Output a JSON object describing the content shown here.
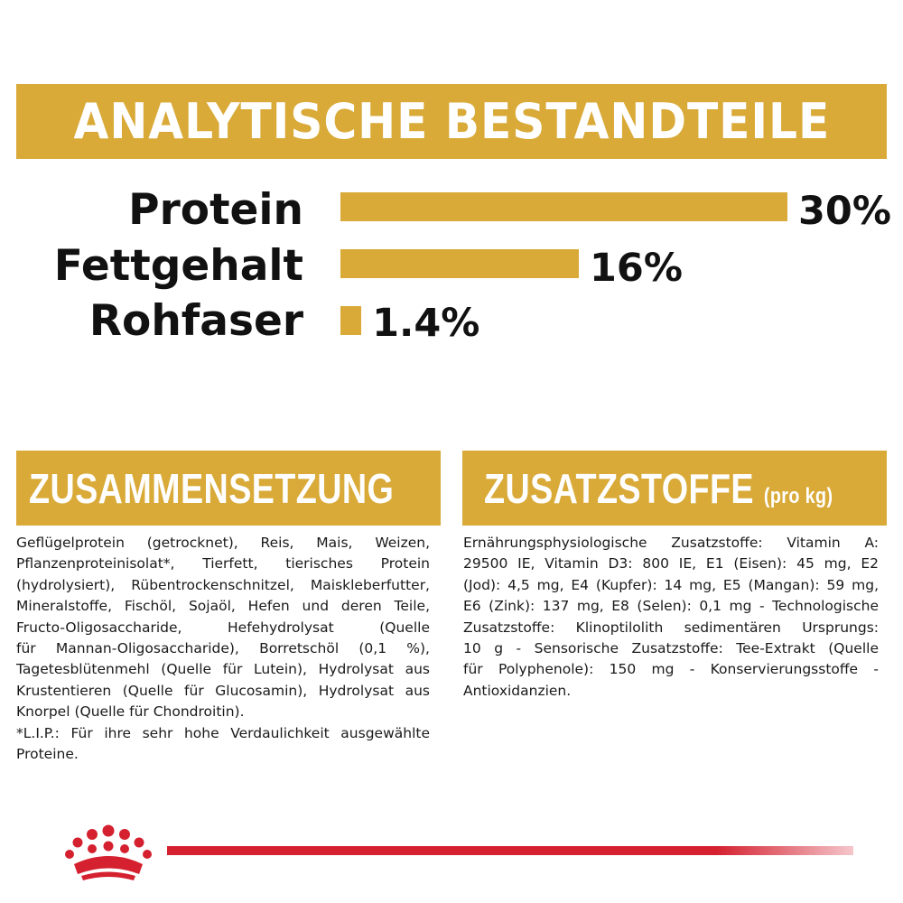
{
  "header": {
    "title": "ANALYTISCHE BESTANDTEILE"
  },
  "chart_data": {
    "type": "bar",
    "orientation": "horizontal",
    "title": "ANALYTISCHE BESTANDTEILE",
    "categories": [
      "Protein",
      "Fettgehalt",
      "Rohfaser"
    ],
    "values": [
      30,
      16,
      1.4
    ],
    "value_labels": [
      "30%",
      "16%",
      "1.4%"
    ],
    "unit": "%",
    "xlim": [
      0,
      30
    ],
    "grid": false,
    "bar_color": "#d9aa38"
  },
  "composition": {
    "title": "ZUSAMMENSETZUNG",
    "lines": [
      "Geflügelprotein (getrocknet), Reis, Mais, Weizen,",
      "Pflanzenproteinisolat*, Tierfett, tierisches Protein",
      "(hydrolysiert), Rübentrockenschnitzel, Maiskleberfutter,",
      "Mineralstoffe, Fischöl, Sojaöl, Hefen und deren Teile,",
      "Fructo-Oligosaccharide, Hefehydrolysat (Quelle",
      "für Mannan-Oligosaccharide), Borretschöl (0,1 %),",
      "Tagetesblütenmehl (Quelle für Lutein), Hydrolysat aus",
      "Krustentieren (Quelle für Glucosamin), Hydrolysat aus",
      "Knorpel (Quelle für Chondroitin).",
      "*L.I.P.: Für ihre sehr hohe Verdaulichkeit ausgewählte",
      "Proteine."
    ]
  },
  "additives": {
    "title": "ZUSATZSTOFFE",
    "unit": "(pro kg)",
    "lines": [
      "Ernährungsphysiologische Zusatzstoffe: Vitamin A:",
      "29500 IE, Vitamin D3: 800 IE, E1 (Eisen): 45 mg, E2",
      "(Jod): 4,5 mg, E4 (Kupfer): 14 mg, E5 (Mangan): 59 mg,",
      "E6 (Zink): 137 mg, E8 (Selen): 0,1 mg - Technologische",
      "Zusatzstoffe: Klinoptilolith sedimentären Ursprungs:",
      "10 g - Sensorische Zusatzstoffe: Tee-Extrakt (Quelle",
      "für Polyphenole): 150 mg - Konservierungsstoffe -",
      "Antioxidanzien."
    ]
  },
  "brand": {
    "logo_icon": "crown-logo-icon",
    "accent": "#d4202f"
  },
  "colors": {
    "gold": "#d9aa38",
    "text": "#111111"
  }
}
